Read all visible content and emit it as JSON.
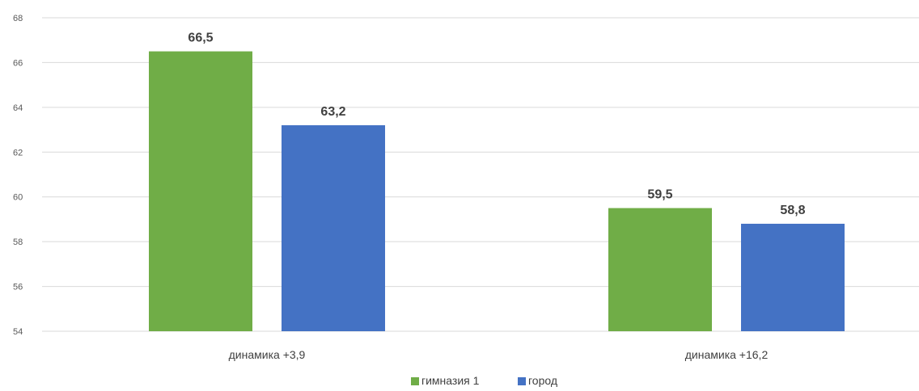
{
  "chart_data": {
    "type": "bar",
    "title": "",
    "xlabel": "",
    "ylabel": "",
    "categories": [
      "динамика +3,9",
      "динамика +16,2"
    ],
    "series": [
      {
        "name": "гимназия 1",
        "color": "#70ad47",
        "values": [
          66.5,
          59.5
        ],
        "labels": [
          "66,5",
          "59,5"
        ]
      },
      {
        "name": "город",
        "color": "#4472c4",
        "values": [
          63.2,
          58.8
        ],
        "labels": [
          "63,2",
          "58,8"
        ]
      }
    ],
    "ylim": [
      54,
      68
    ],
    "yticks": [
      54,
      56,
      58,
      60,
      62,
      64,
      66,
      68
    ],
    "grid": true,
    "legend_position": "bottom"
  }
}
